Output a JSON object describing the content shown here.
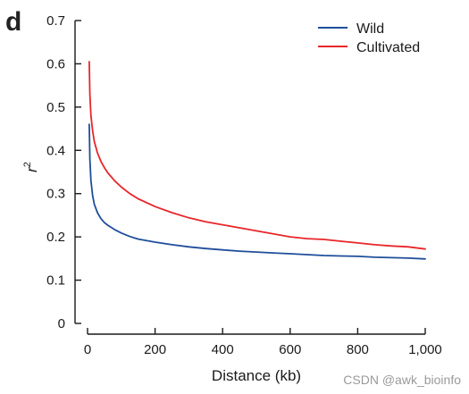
{
  "panel_label": "d",
  "watermark": "CSDN @awk_bioinfo",
  "colors": {
    "wild": "#1f4e9a",
    "cultivated": "#e8262a",
    "axis": "#1a1a1a"
  },
  "chart_data": {
    "type": "line",
    "title": "",
    "xlabel": "Distance (kb)",
    "ylabel_base": "r",
    "ylabel_sup": "2",
    "xlim": [
      0,
      1000
    ],
    "ylim": [
      0,
      0.7
    ],
    "x_ticks": [
      0,
      200,
      400,
      600,
      800,
      1000
    ],
    "x_tick_labels": [
      "0",
      "200",
      "400",
      "600",
      "800",
      "1,000"
    ],
    "y_ticks": [
      0,
      0.1,
      0.2,
      0.3,
      0.4,
      0.5,
      0.6,
      0.7
    ],
    "y_tick_labels": [
      "0",
      "0.1",
      "0.2",
      "0.3",
      "0.4",
      "0.5",
      "0.6",
      "0.7"
    ],
    "legend_position": "top-right",
    "grid": false,
    "series": [
      {
        "name": "Wild",
        "color": "#1f4e9a",
        "x": [
          5,
          7,
          10,
          15,
          20,
          30,
          40,
          50,
          60,
          80,
          100,
          125,
          150,
          200,
          250,
          300,
          350,
          400,
          450,
          500,
          550,
          600,
          650,
          700,
          750,
          800,
          850,
          900,
          950,
          1000
        ],
        "y": [
          0.46,
          0.38,
          0.33,
          0.295,
          0.275,
          0.255,
          0.242,
          0.233,
          0.227,
          0.217,
          0.209,
          0.201,
          0.195,
          0.188,
          0.182,
          0.177,
          0.173,
          0.17,
          0.167,
          0.165,
          0.163,
          0.161,
          0.159,
          0.157,
          0.156,
          0.155,
          0.153,
          0.152,
          0.151,
          0.149
        ]
      },
      {
        "name": "Cultivated",
        "color": "#e8262a",
        "x": [
          5,
          7,
          10,
          15,
          20,
          30,
          40,
          50,
          60,
          80,
          100,
          125,
          150,
          200,
          250,
          300,
          350,
          400,
          450,
          500,
          550,
          600,
          650,
          700,
          750,
          800,
          850,
          900,
          950,
          1000
        ],
        "y": [
          0.605,
          0.53,
          0.48,
          0.445,
          0.42,
          0.393,
          0.374,
          0.36,
          0.348,
          0.33,
          0.315,
          0.3,
          0.288,
          0.27,
          0.256,
          0.244,
          0.235,
          0.228,
          0.221,
          0.214,
          0.207,
          0.2,
          0.196,
          0.194,
          0.19,
          0.186,
          0.182,
          0.179,
          0.177,
          0.172
        ]
      }
    ]
  }
}
